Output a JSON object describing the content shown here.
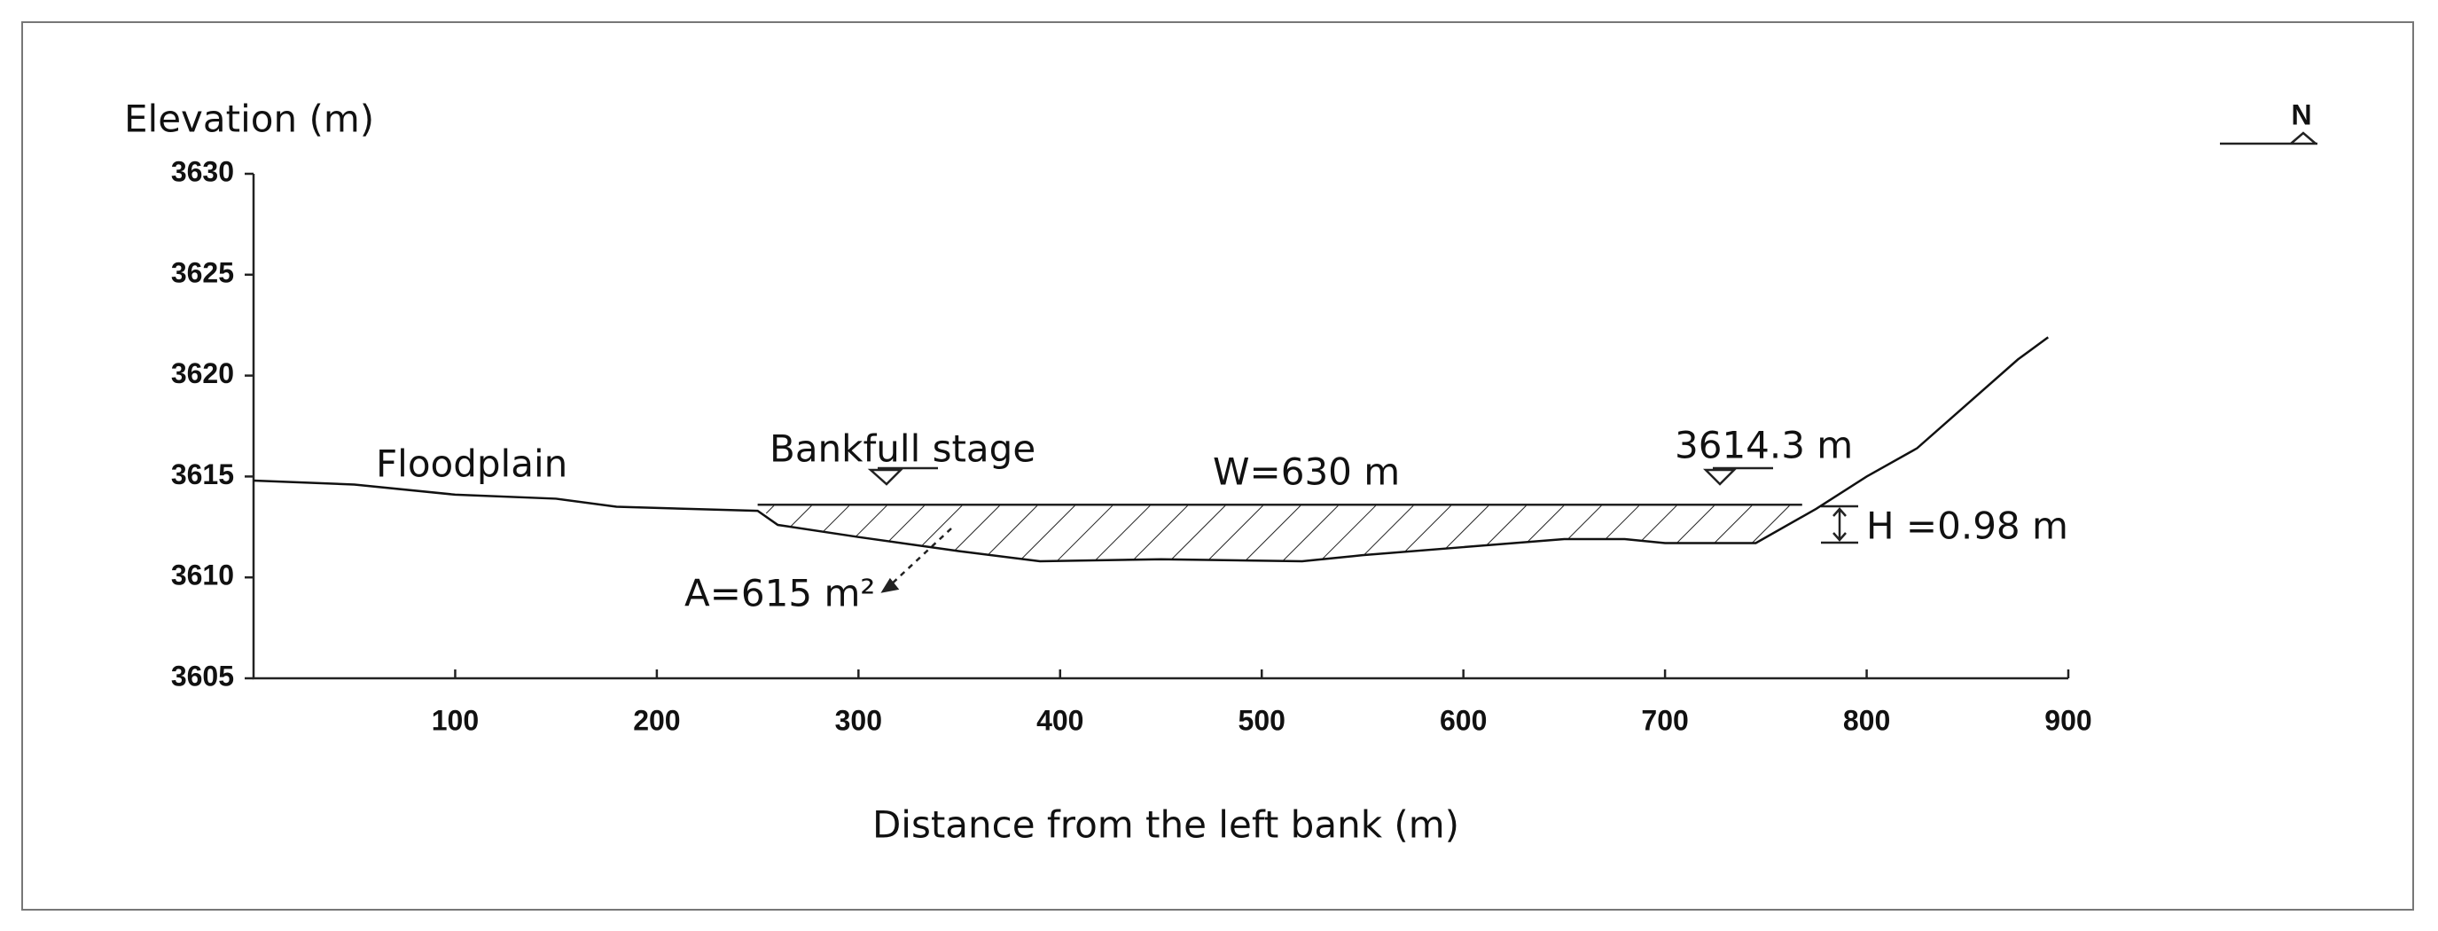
{
  "chart_data": {
    "type": "line",
    "y_label": "Elevation (m)",
    "x_label": "Distance from the left bank (m)",
    "xlim": [
      0,
      900
    ],
    "xticks": [
      100,
      200,
      300,
      400,
      500,
      600,
      700,
      800,
      900
    ],
    "ylim": [
      3605,
      3630
    ],
    "yticks": [
      3605,
      3610,
      3615,
      3620,
      3625,
      3630
    ],
    "series": [
      {
        "color": "#111111",
        "x": [
          0,
          50,
          100,
          150,
          180,
          250,
          260,
          300,
          350,
          390,
          450,
          520,
          550,
          600,
          650,
          680,
          700,
          745,
          775,
          800,
          825,
          875,
          890
        ],
        "values": [
          3614.8,
          3614.6,
          3614.1,
          3613.9,
          3613.5,
          3613.3,
          3612.6,
          3612.0,
          3611.3,
          3610.8,
          3610.9,
          3610.8,
          3611.1,
          3611.5,
          3611.9,
          3611.9,
          3611.7,
          3611.7,
          3613.4,
          3615.0,
          3616.4,
          3620.8,
          3621.9
        ]
      }
    ],
    "water_surface": {
      "x": [
        250,
        768
      ],
      "values": [
        3613.6,
        3613.6
      ]
    },
    "annotations": {
      "floodplain": "Floodplain",
      "bankfull": "Bankfull stage",
      "width": "W=630 m",
      "level": "3614.3 m",
      "area": "A=615 m²",
      "depth": "H =0.98 m",
      "north": "N"
    }
  }
}
